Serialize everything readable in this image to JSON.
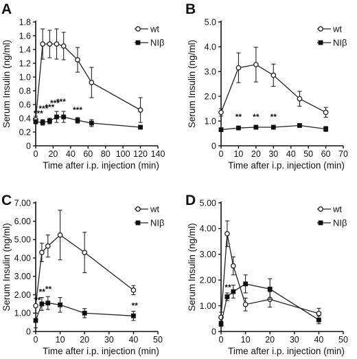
{
  "chart_data": [
    {
      "panel": "A",
      "type": "line",
      "xlabel": "Time after i.p. injection (min)",
      "ylabel": "Serum Insulin (ng/ml)",
      "xlim": [
        0,
        140
      ],
      "ylim": [
        0,
        1.8
      ],
      "xticks": [
        0,
        20,
        40,
        60,
        80,
        100,
        120,
        140
      ],
      "yticks": [
        0,
        0.2,
        0.4,
        0.6,
        0.8,
        1.0,
        1.2,
        1.4,
        1.6,
        1.8
      ],
      "ytick_labels": [
        "0",
        "0.2",
        "0.4",
        "0.6",
        "0.8",
        "1.0",
        "1.2",
        "1.4",
        "1.6",
        "1.8"
      ],
      "series": [
        {
          "name": "wt",
          "marker": "open-circle",
          "x": [
            0,
            8,
            16,
            24,
            32,
            48,
            64,
            120
          ],
          "y": [
            0.38,
            1.48,
            1.48,
            1.48,
            1.45,
            1.25,
            0.92,
            0.52
          ],
          "err": [
            0.05,
            0.22,
            0.2,
            0.22,
            0.2,
            0.18,
            0.22,
            0.18
          ]
        },
        {
          "name": "NIβ",
          "marker": "filled-square",
          "x": [
            0,
            8,
            16,
            24,
            32,
            48,
            64,
            120
          ],
          "y": [
            0.35,
            0.34,
            0.36,
            0.42,
            0.42,
            0.37,
            0.33,
            0.27
          ],
          "err": [
            0.03,
            0.04,
            0.04,
            0.08,
            0.08,
            0.04,
            0.05,
            0.02
          ]
        }
      ],
      "annotations": [
        {
          "text": "***",
          "x": 3,
          "y": 0.43
        },
        {
          "text": "***",
          "x": 9,
          "y": 0.5
        },
        {
          "text": "***",
          "x": 16,
          "y": 0.52
        },
        {
          "text": "***",
          "x": 22,
          "y": 0.58
        },
        {
          "text": "***",
          "x": 29,
          "y": 0.6
        },
        {
          "text": "***",
          "x": 48,
          "y": 0.48
        }
      ],
      "legend": "top-right"
    },
    {
      "panel": "B",
      "type": "line",
      "xlabel": "Time after i.p. injection (min)",
      "ylabel": "Serum Insulin (ng/ml)",
      "xlim": [
        0,
        70
      ],
      "ylim": [
        0,
        5.0
      ],
      "xticks": [
        0,
        10,
        20,
        30,
        40,
        50,
        60,
        70
      ],
      "yticks": [
        0,
        1.0,
        2.0,
        3.0,
        4.0,
        5.0
      ],
      "ytick_labels": [
        "0",
        "1.0",
        "2.0",
        "3.0",
        "4.0",
        "5.0"
      ],
      "series": [
        {
          "name": "wt",
          "marker": "open-circle",
          "x": [
            0,
            10,
            20,
            30,
            45,
            60
          ],
          "y": [
            1.35,
            3.15,
            3.28,
            2.85,
            1.9,
            1.35
          ],
          "err": [
            0.15,
            0.6,
            0.7,
            0.45,
            0.3,
            0.2
          ]
        },
        {
          "name": "NIβ",
          "marker": "filled-square",
          "x": [
            0,
            10,
            20,
            30,
            45,
            60
          ],
          "y": [
            0.65,
            0.72,
            0.75,
            0.75,
            0.82,
            0.68
          ],
          "err": [
            0.05,
            0.05,
            0.08,
            0.08,
            0.05,
            0.1
          ]
        }
      ],
      "annotations": [
        {
          "text": "**",
          "x": 10,
          "y": 1.05
        },
        {
          "text": "**",
          "x": 20,
          "y": 1.05
        },
        {
          "text": "**",
          "x": 30,
          "y": 1.05
        }
      ],
      "legend": "top-right"
    },
    {
      "panel": "C",
      "type": "line",
      "xlabel": "Time after i.p. injection (min)",
      "ylabel": "Serum Insulin (ng/ml)",
      "xlim": [
        0,
        50
      ],
      "ylim": [
        0,
        7.0
      ],
      "xticks": [
        0,
        10,
        20,
        30,
        40,
        50
      ],
      "yticks": [
        0,
        1.0,
        2.0,
        3.0,
        4.0,
        5.0,
        6.0,
        7.0
      ],
      "ytick_labels": [
        "0",
        "1.00",
        "2.00",
        "3.00",
        "4.00",
        "5.00",
        "6.00",
        "7.00"
      ],
      "series": [
        {
          "name": "wt",
          "marker": "open-circle",
          "x": [
            0,
            2.5,
            5,
            10,
            20,
            40
          ],
          "y": [
            1.4,
            4.3,
            4.65,
            5.25,
            4.3,
            2.25
          ],
          "err": [
            0.4,
            0.5,
            0.6,
            1.35,
            1.1,
            0.25
          ]
        },
        {
          "name": "NIβ",
          "marker": "filled-square",
          "x": [
            0,
            2.5,
            5,
            10,
            20,
            40
          ],
          "y": [
            0.6,
            1.5,
            1.55,
            1.45,
            1.0,
            0.85
          ],
          "err": [
            0.4,
            0.35,
            0.35,
            0.4,
            0.25,
            0.25
          ]
        }
      ],
      "annotations": [
        {
          "text": "**",
          "x": 0.8,
          "y": 1.55
        },
        {
          "text": "**",
          "x": 2.6,
          "y": 2.0
        },
        {
          "text": "**",
          "x": 5.2,
          "y": 2.15
        },
        {
          "text": "**",
          "x": 40.5,
          "y": 1.25
        }
      ],
      "legend": "top-right"
    },
    {
      "panel": "D",
      "type": "line",
      "xlabel": "Time after i.p. injection (min)",
      "ylabel": "Serum Insulin (ng/ml)",
      "xlim": [
        0,
        50
      ],
      "ylim": [
        0,
        5.0
      ],
      "xticks": [
        0,
        10,
        20,
        30,
        40,
        50
      ],
      "yticks": [
        0,
        1.0,
        2.0,
        3.0,
        4.0,
        5.0
      ],
      "ytick_labels": [
        "0",
        "1.00",
        "2.00",
        "3.00",
        "4.00",
        "5.00"
      ],
      "series": [
        {
          "name": "wt",
          "marker": "open-circle",
          "x": [
            0,
            2.5,
            5,
            10,
            20,
            40
          ],
          "y": [
            0.55,
            3.8,
            2.55,
            1.05,
            1.25,
            0.7
          ],
          "err": [
            0.2,
            0.5,
            0.35,
            0.25,
            0.3,
            0.2
          ]
        },
        {
          "name": "NIβ",
          "marker": "filled-square",
          "x": [
            0,
            2.5,
            5,
            10,
            20,
            40
          ],
          "y": [
            0.3,
            1.35,
            1.55,
            1.85,
            1.65,
            0.45
          ],
          "err": [
            0.1,
            0.15,
            0.25,
            0.35,
            0.4,
            0.15
          ]
        }
      ],
      "annotations": [
        {
          "text": "**",
          "x": 2.8,
          "y": 1.6
        }
      ],
      "legend": "top-right"
    }
  ]
}
